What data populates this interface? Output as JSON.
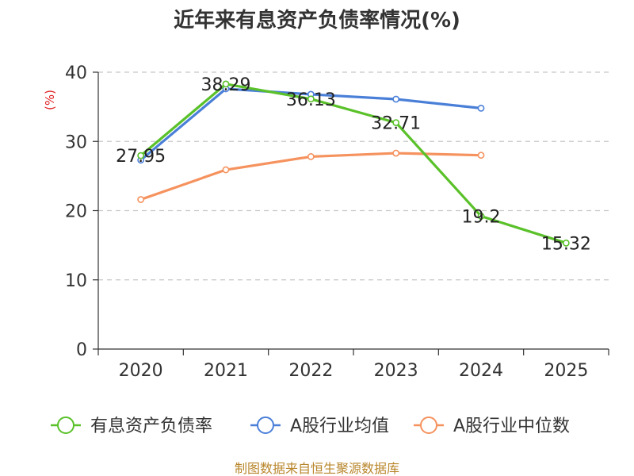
{
  "chart_data": {
    "type": "line",
    "title": "近年来有息资产负债率情况(%)",
    "ylabel": "(%)",
    "xlabel": "",
    "categories": [
      "2020",
      "2021",
      "2022",
      "2023",
      "2024",
      "2025"
    ],
    "ylim": [
      0,
      40
    ],
    "yticks": [
      0,
      10,
      20,
      30,
      40
    ],
    "grid": true,
    "legend_position": "bottom",
    "series": [
      {
        "name": "有息资产负债率",
        "color": "#5ac12a",
        "values": [
          27.95,
          38.29,
          36.13,
          32.71,
          19.2,
          15.32
        ],
        "labels": [
          "27.95",
          "38.29",
          "36.13",
          "32.71",
          "19.2",
          "15.32"
        ]
      },
      {
        "name": "A股行业均值",
        "color": "#4a7fd8",
        "values": [
          27.3,
          37.6,
          36.8,
          36.1,
          34.8,
          null
        ]
      },
      {
        "name": "A股行业中位数",
        "color": "#f5925e",
        "values": [
          21.6,
          25.9,
          27.8,
          28.3,
          28.0,
          null
        ]
      }
    ],
    "source": "制图数据来自恒生聚源数据库"
  }
}
